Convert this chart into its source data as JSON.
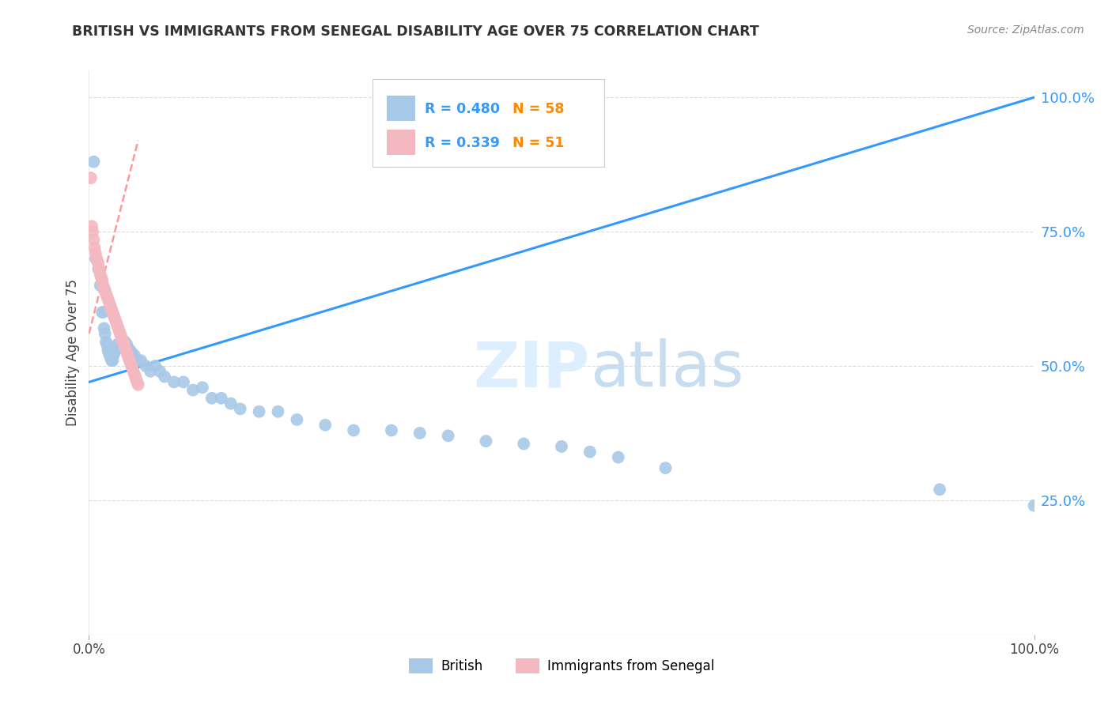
{
  "title": "BRITISH VS IMMIGRANTS FROM SENEGAL DISABILITY AGE OVER 75 CORRELATION CHART",
  "source": "Source: ZipAtlas.com",
  "ylabel": "Disability Age Over 75",
  "legend_label1": "British",
  "legend_label2": "Immigrants from Senegal",
  "r_british": 0.48,
  "n_british": 58,
  "r_senegal": 0.339,
  "n_senegal": 51,
  "blue_scatter_color": "#a8c8e8",
  "blue_line_color": "#3399ff",
  "pink_scatter_color": "#f4b8c0",
  "pink_line_color": "#ff9999",
  "bg_color": "#ffffff",
  "grid_color": "#dddddd",
  "right_axis_color": "#3399ff",
  "title_color": "#333333",
  "watermark_color": "#ddeeff",
  "british_x": [
    0.005,
    0.007,
    0.01,
    0.012,
    0.014,
    0.015,
    0.016,
    0.017,
    0.018,
    0.019,
    0.02,
    0.021,
    0.022,
    0.023,
    0.024,
    0.025,
    0.026,
    0.027,
    0.028,
    0.03,
    0.032,
    0.034,
    0.038,
    0.04,
    0.043,
    0.045,
    0.048,
    0.05,
    0.055,
    0.06,
    0.065,
    0.07,
    0.075,
    0.08,
    0.09,
    0.1,
    0.11,
    0.12,
    0.13,
    0.14,
    0.15,
    0.16,
    0.18,
    0.2,
    0.22,
    0.25,
    0.28,
    0.32,
    0.35,
    0.38,
    0.42,
    0.46,
    0.5,
    0.53,
    0.56,
    0.61,
    0.9,
    1.0
  ],
  "british_y": [
    0.88,
    0.7,
    0.68,
    0.65,
    0.6,
    0.6,
    0.57,
    0.56,
    0.545,
    0.54,
    0.53,
    0.525,
    0.52,
    0.515,
    0.51,
    0.51,
    0.52,
    0.525,
    0.53,
    0.54,
    0.54,
    0.545,
    0.545,
    0.54,
    0.53,
    0.525,
    0.52,
    0.51,
    0.51,
    0.5,
    0.49,
    0.5,
    0.49,
    0.48,
    0.47,
    0.47,
    0.455,
    0.46,
    0.44,
    0.44,
    0.43,
    0.42,
    0.415,
    0.415,
    0.4,
    0.39,
    0.38,
    0.38,
    0.375,
    0.37,
    0.36,
    0.355,
    0.35,
    0.34,
    0.33,
    0.31,
    0.27,
    0.24
  ],
  "senegal_x": [
    0.002,
    0.003,
    0.004,
    0.005,
    0.006,
    0.007,
    0.008,
    0.009,
    0.01,
    0.011,
    0.012,
    0.013,
    0.014,
    0.015,
    0.016,
    0.017,
    0.018,
    0.019,
    0.02,
    0.021,
    0.022,
    0.023,
    0.024,
    0.025,
    0.026,
    0.027,
    0.028,
    0.029,
    0.03,
    0.031,
    0.032,
    0.033,
    0.034,
    0.035,
    0.036,
    0.037,
    0.038,
    0.039,
    0.04,
    0.041,
    0.042,
    0.043,
    0.044,
    0.045,
    0.046,
    0.047,
    0.048,
    0.049,
    0.05,
    0.051,
    0.052
  ],
  "senegal_y": [
    0.85,
    0.76,
    0.75,
    0.735,
    0.72,
    0.71,
    0.7,
    0.695,
    0.69,
    0.68,
    0.67,
    0.665,
    0.66,
    0.65,
    0.645,
    0.64,
    0.635,
    0.63,
    0.625,
    0.62,
    0.615,
    0.61,
    0.605,
    0.6,
    0.595,
    0.59,
    0.585,
    0.58,
    0.575,
    0.57,
    0.565,
    0.56,
    0.555,
    0.55,
    0.545,
    0.54,
    0.535,
    0.53,
    0.525,
    0.52,
    0.515,
    0.51,
    0.505,
    0.5,
    0.495,
    0.49,
    0.485,
    0.48,
    0.475,
    0.47,
    0.465
  ],
  "xlim": [
    0.0,
    1.0
  ],
  "ylim": [
    0.0,
    1.05
  ],
  "yticks": [
    0.25,
    0.5,
    0.75,
    1.0
  ],
  "ytick_labels": [
    "25.0%",
    "50.0%",
    "75.0%",
    "100.0%"
  ],
  "xtick_labels": [
    "0.0%",
    "100.0%"
  ],
  "blue_line_x": [
    0.0,
    1.0
  ],
  "blue_line_y": [
    0.47,
    1.0
  ],
  "pink_line_x": [
    0.0,
    0.052
  ],
  "pink_line_y": [
    0.56,
    0.92
  ]
}
